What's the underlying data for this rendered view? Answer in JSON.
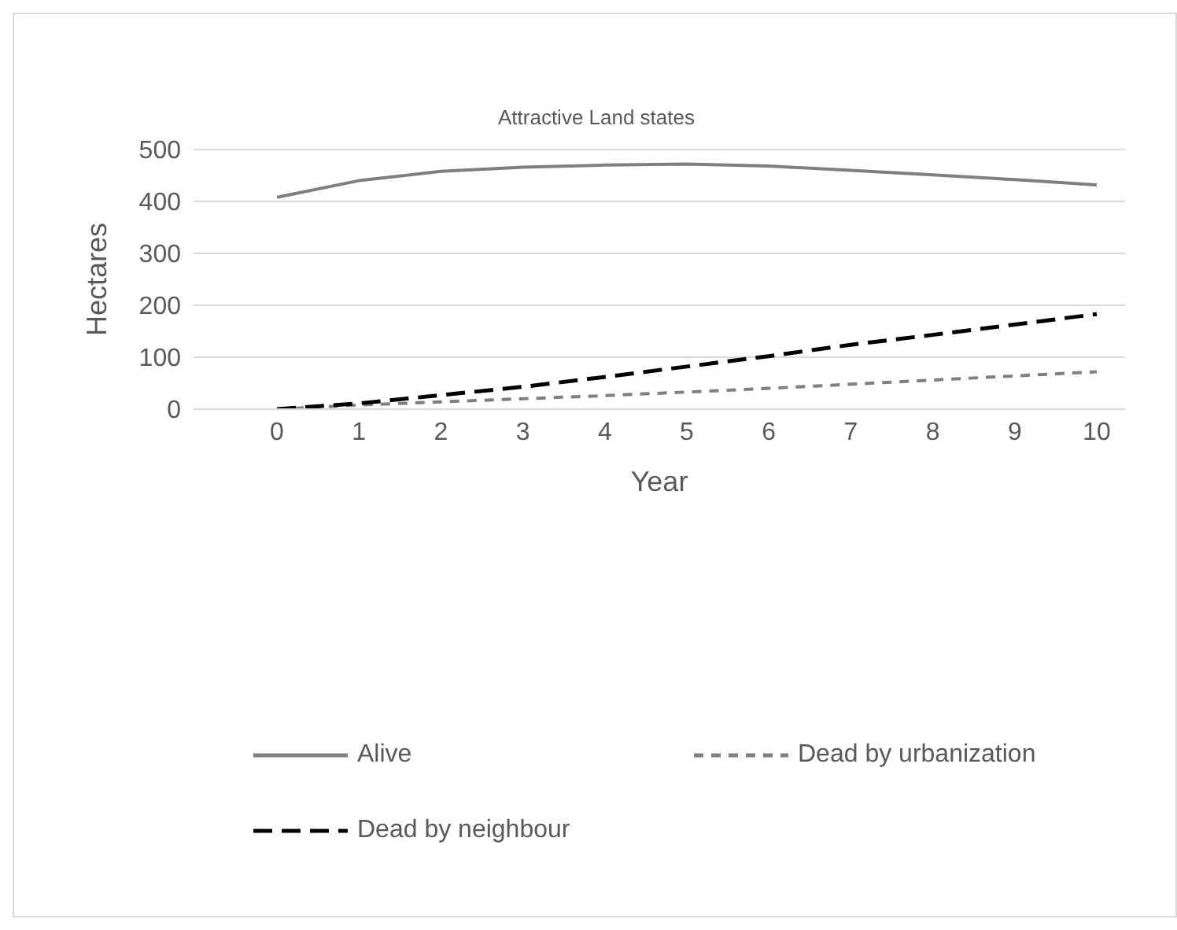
{
  "chart_data": {
    "type": "line",
    "title": "Attractive Land states",
    "xlabel": "Year",
    "ylabel": "Hectares",
    "categories": [
      "0",
      "1",
      "2",
      "3",
      "4",
      "5",
      "6",
      "7",
      "8",
      "9",
      "10"
    ],
    "series": [
      {
        "name": "Alive",
        "color": "#7f7f7f",
        "line_style": "solid",
        "values": [
          408,
          440,
          458,
          466,
          470,
          472,
          468,
          460,
          451,
          442,
          432
        ]
      },
      {
        "name": "Dead by urbanization",
        "color": "#7f7f7f",
        "line_style": "dashed",
        "values": [
          0,
          8,
          14,
          20,
          26,
          33,
          40,
          48,
          56,
          64,
          72
        ]
      },
      {
        "name": "Dead by neighbour",
        "color": "#000000",
        "line_style": "dashed",
        "values": [
          0,
          11,
          27,
          43,
          62,
          82,
          102,
          124,
          143,
          163,
          183
        ]
      }
    ],
    "ylim": [
      0,
      500
    ],
    "yticks": [
      0,
      100,
      200,
      300,
      400,
      500
    ],
    "grid": "y",
    "legend": "bottom",
    "marker": "none"
  }
}
